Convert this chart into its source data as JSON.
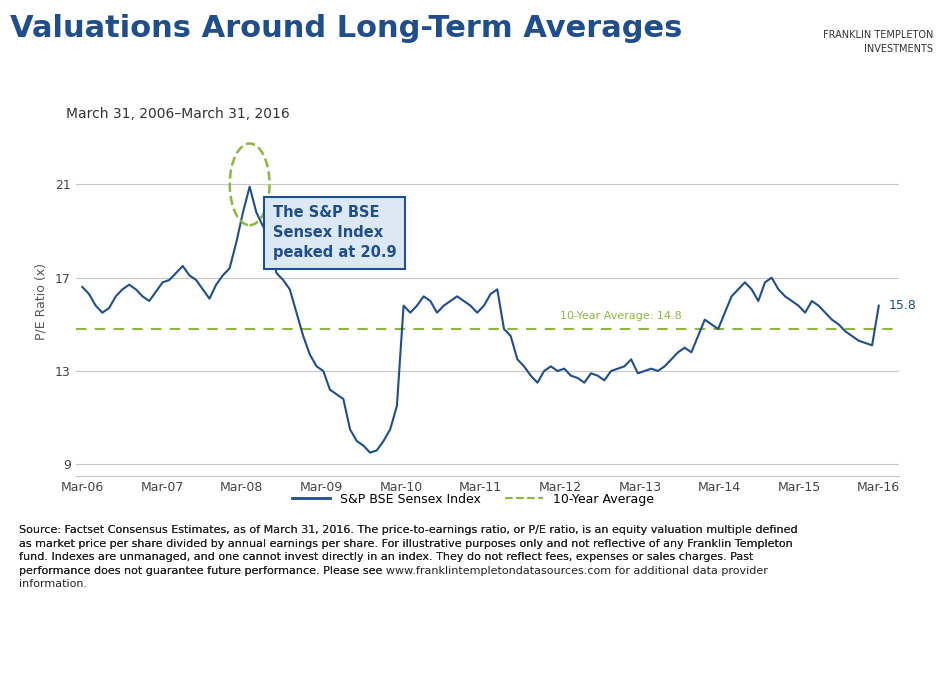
{
  "title": "Valuations Around Long-Term Averages",
  "subtitle": "March 31, 2006–March 31, 2016",
  "ylabel": "P/E Ratio (x)",
  "ten_year_avg": 14.8,
  "ten_year_avg_label": "10-Year Average: 14.8",
  "peak_value": 20.9,
  "peak_label": "The S&P BSE\nSensex Index\npeaked at 20.9",
  "last_value": 15.8,
  "title_color": "#1F4E8C",
  "line_color": "#1F4E8C",
  "avg_line_color": "#8DB83E",
  "annotation_box_color": "#1F4E8C",
  "annotation_box_bg": "#DCE9F5",
  "circle_color": "#8DB83E",
  "ylim": [
    8.5,
    23.5
  ],
  "yticks": [
    9,
    13,
    17,
    21
  ],
  "background_color": "#FFFFFF",
  "grid_color": "#C8C8C8",
  "separator_color": "#1F4E8C",
  "source_text_part1": "Source: Factset Consensus Estimates, as of March 31, 2016. The price-to-earnings ratio, or P/E ratio, is an equity valuation multiple defined\nas market price per share divided by annual earnings per share. For illustrative purposes only and not reflective of any Franklin Templeton\nfund. Indexes are unmanaged, and one cannot invest directly in an index. They do not reflect fees, expenses or sales charges. Past\nperformance does not guarantee future performance. Please see ",
  "url_text": "www.franklintempletondatasources.com",
  "source_text_part2": " for additional data provider\ninformation.",
  "x_labels": [
    "Mar-06",
    "Mar-07",
    "Mar-08",
    "Mar-09",
    "Mar-10",
    "Mar-11",
    "Mar-12",
    "Mar-13",
    "Mar-14",
    "Mar-15",
    "Mar-16"
  ],
  "x_positions": [
    0,
    12,
    24,
    36,
    48,
    60,
    72,
    84,
    96,
    108,
    120
  ],
  "pe_data": [
    16.6,
    16.3,
    15.8,
    15.5,
    15.7,
    16.2,
    16.5,
    16.7,
    16.5,
    16.2,
    16.0,
    16.4,
    16.8,
    16.9,
    17.2,
    17.5,
    17.1,
    16.9,
    16.5,
    16.1,
    16.7,
    17.1,
    17.4,
    18.5,
    19.8,
    20.9,
    19.8,
    19.2,
    18.7,
    17.2,
    16.9,
    16.5,
    15.5,
    14.5,
    13.7,
    13.2,
    13.0,
    12.2,
    12.0,
    11.8,
    10.5,
    10.0,
    9.8,
    9.5,
    9.6,
    10.0,
    10.5,
    11.5,
    15.8,
    15.5,
    15.8,
    16.2,
    16.0,
    15.5,
    15.8,
    16.0,
    16.2,
    16.0,
    15.8,
    15.5,
    15.8,
    16.3,
    16.5,
    14.8,
    14.5,
    13.5,
    13.2,
    12.8,
    12.5,
    13.0,
    13.2,
    13.0,
    13.1,
    12.8,
    12.7,
    12.5,
    12.9,
    12.8,
    12.6,
    13.0,
    13.1,
    13.2,
    13.5,
    12.9,
    13.0,
    13.1,
    13.0,
    13.2,
    13.5,
    13.8,
    14.0,
    13.8,
    14.5,
    15.2,
    15.0,
    14.8,
    15.5,
    16.2,
    16.5,
    16.8,
    16.5,
    16.0,
    16.8,
    17.0,
    16.5,
    16.2,
    16.0,
    15.8,
    15.5,
    16.0,
    15.8,
    15.5,
    15.2,
    15.0,
    14.7,
    14.5,
    14.3,
    14.2,
    14.1,
    15.8
  ]
}
